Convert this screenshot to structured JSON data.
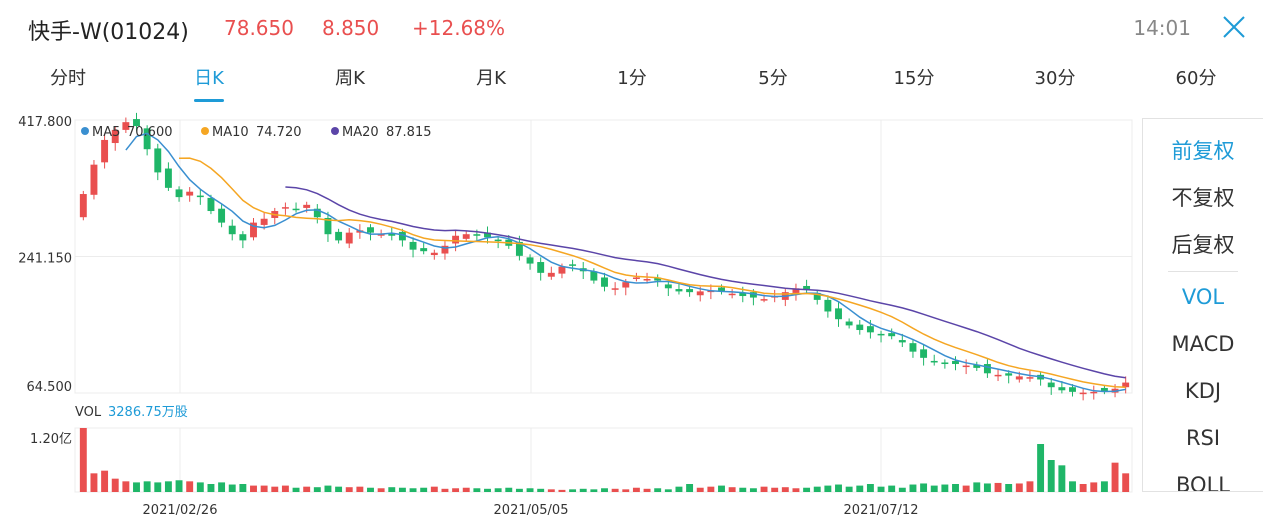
{
  "header": {
    "title": "快手-W(01024)",
    "price": "78.650",
    "change": "8.850",
    "change_pct": "+12.68%",
    "time": "14:01"
  },
  "colors": {
    "up": "#e94f4f",
    "down": "#1fb668",
    "accent": "#1e9bd7",
    "ma5": "#3a8fd0",
    "ma10": "#f5a623",
    "ma20": "#5b45a8"
  },
  "icons": {
    "close": "close-icon"
  },
  "tabs": [
    {
      "label": "分时"
    },
    {
      "label": "日K",
      "active": true
    },
    {
      "label": "周K"
    },
    {
      "label": "月K"
    },
    {
      "label": "1分"
    },
    {
      "label": "5分"
    },
    {
      "label": "15分"
    },
    {
      "label": "30分"
    },
    {
      "label": "60分"
    }
  ],
  "side_panel": {
    "items": [
      {
        "label": "前复权",
        "active": true
      },
      {
        "label": "不复权"
      },
      {
        "label": "后复权"
      },
      {
        "label": "VOL",
        "active": true
      },
      {
        "label": "MACD"
      },
      {
        "label": "KDJ"
      },
      {
        "label": "RSI"
      },
      {
        "label": "BOLL"
      }
    ]
  },
  "chart_data": {
    "type": "candlestick",
    "price_axis": {
      "ticks": [
        "417.800",
        "241.150",
        "64.500"
      ],
      "range": [
        64.5,
        417.8
      ]
    },
    "volume_axis": {
      "ticks": [
        "1.20亿"
      ],
      "max": 1.2
    },
    "date_labels": [
      "2021/02/26",
      "2021/05/05",
      "2021/07/12"
    ],
    "legend": [
      {
        "name": "MA5",
        "value": "70.600"
      },
      {
        "name": "MA10",
        "value": "74.720"
      },
      {
        "name": "MA20",
        "value": "87.815"
      }
    ],
    "volume_legend": {
      "label": "VOL",
      "value": "3286.75万股"
    },
    "closes": [
      322,
      360,
      392,
      405,
      415,
      410,
      380,
      350,
      330,
      318,
      325,
      318,
      300,
      285,
      270,
      262,
      285,
      290,
      300,
      305,
      302,
      308,
      292,
      270,
      262,
      272,
      275,
      272,
      270,
      268,
      262,
      250,
      248,
      246,
      255,
      268,
      270,
      268,
      266,
      262,
      255,
      242,
      232,
      220,
      220,
      228,
      230,
      222,
      210,
      202,
      200,
      208,
      214,
      212,
      210,
      200,
      196,
      195,
      196,
      197,
      196,
      193,
      190,
      188,
      186,
      190,
      195,
      200,
      198,
      185,
      170,
      160,
      152,
      146,
      143,
      140,
      138,
      130,
      118,
      110,
      104,
      102,
      102,
      100,
      97,
      90,
      88,
      87,
      86,
      85,
      82,
      72,
      68,
      66,
      65,
      66,
      67,
      70,
      78
    ],
    "volumes": [
      1.2,
      0.35,
      0.4,
      0.25,
      0.2,
      0.18,
      0.2,
      0.18,
      0.2,
      0.22,
      0.2,
      0.18,
      0.15,
      0.18,
      0.14,
      0.15,
      0.12,
      0.12,
      0.1,
      0.12,
      0.08,
      0.1,
      0.09,
      0.12,
      0.1,
      0.09,
      0.1,
      0.08,
      0.07,
      0.09,
      0.08,
      0.07,
      0.08,
      0.1,
      0.06,
      0.07,
      0.08,
      0.07,
      0.06,
      0.07,
      0.08,
      0.06,
      0.07,
      0.06,
      0.05,
      0.04,
      0.05,
      0.06,
      0.05,
      0.07,
      0.06,
      0.05,
      0.08,
      0.06,
      0.07,
      0.05,
      0.1,
      0.15,
      0.08,
      0.1,
      0.12,
      0.09,
      0.08,
      0.07,
      0.1,
      0.08,
      0.09,
      0.07,
      0.08,
      0.1,
      0.12,
      0.14,
      0.1,
      0.12,
      0.15,
      0.1,
      0.12,
      0.08,
      0.14,
      0.16,
      0.12,
      0.14,
      0.15,
      0.12,
      0.18,
      0.16,
      0.17,
      0.15,
      0.16,
      0.2,
      0.9,
      0.6,
      0.5,
      0.2,
      0.15,
      0.18,
      0.2,
      0.55,
      0.35
    ]
  }
}
